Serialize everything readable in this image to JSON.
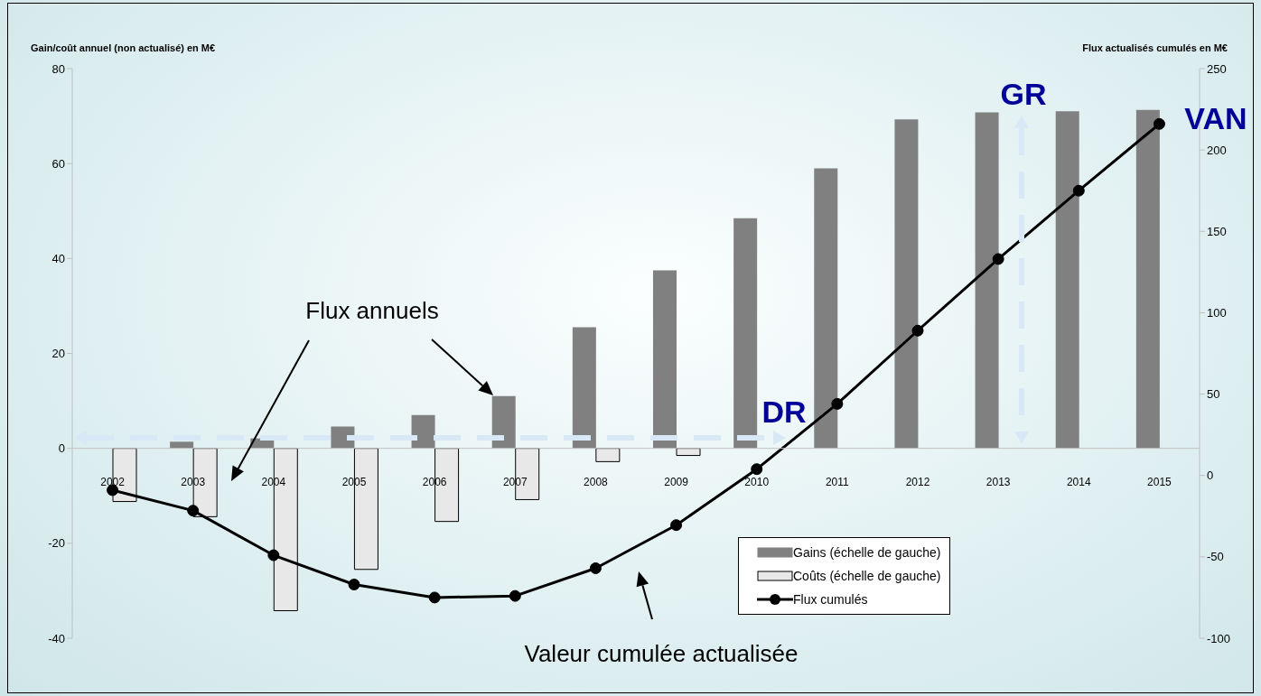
{
  "chart_data": {
    "type": "bar",
    "ylabel": "Gain/coût annuel (non actualisé) en M€",
    "y2label": "Flux actualisés cumulés en M€",
    "categories": [
      "2002",
      "2003",
      "2004",
      "2005",
      "2006",
      "2007",
      "2008",
      "2009",
      "2010",
      "2011",
      "2012",
      "2013",
      "2014",
      "2015"
    ],
    "series": [
      {
        "name": "Gains (échelle de gauche)",
        "color": "#808080",
        "values": [
          0,
          1.4,
          2.1,
          4.6,
          7,
          11,
          25.5,
          37.5,
          48.5,
          59,
          69.3,
          70.8,
          71,
          71.3
        ]
      },
      {
        "name": "Coûts (échelle de gauche)",
        "color": "#e8e8e8",
        "values": [
          -11.2,
          -14.4,
          -34.2,
          -25.5,
          -15.4,
          -10.8,
          -2.8,
          -1.5,
          0,
          0,
          0,
          0,
          0,
          0
        ]
      },
      {
        "name": "Flux cumulés",
        "type": "line",
        "axis": "y2",
        "color": "#000000",
        "values": [
          -9,
          -21.6,
          -49,
          -67,
          -75,
          -74,
          -57,
          -30.5,
          3.9,
          44,
          89,
          133,
          175,
          216
        ]
      }
    ],
    "ylim": [
      -40,
      80
    ],
    "yticks": [
      -40,
      -20,
      0,
      20,
      40,
      60,
      80
    ],
    "y2lim": [
      -100,
      250
    ],
    "y2ticks": [
      -100,
      -50,
      0,
      50,
      100,
      150,
      200,
      250
    ],
    "annotations": [
      "Flux annuels",
      "Valeur cumulée actualisée",
      "DR",
      "GR",
      "VAN"
    ],
    "legend": "bottom right",
    "marker": "circle",
    "grid": false
  }
}
